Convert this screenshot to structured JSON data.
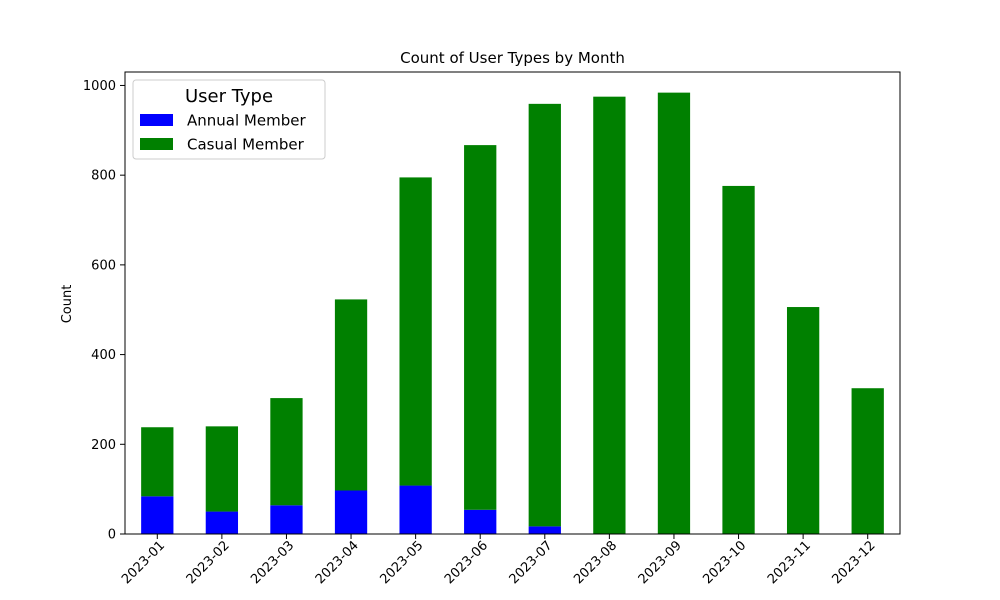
{
  "chart_data": {
    "type": "bar",
    "stacked": true,
    "title": "Count of User Types by Month",
    "xlabel": "",
    "ylabel": "Count",
    "ylim": [
      0,
      1030
    ],
    "yticks": [
      0,
      200,
      400,
      600,
      800,
      1000
    ],
    "categories": [
      "2023-01",
      "2023-02",
      "2023-03",
      "2023-04",
      "2023-05",
      "2023-06",
      "2023-07",
      "2023-08",
      "2023-09",
      "2023-10",
      "2023-11",
      "2023-12"
    ],
    "series": [
      {
        "name": "Annual Member",
        "color": "#0000ff",
        "values": [
          84,
          50,
          64,
          97,
          108,
          54,
          17,
          0,
          0,
          0,
          0,
          0
        ]
      },
      {
        "name": "Casual Member",
        "color": "#008000",
        "values": [
          154,
          190,
          239,
          426,
          687,
          813,
          942,
          975,
          984,
          776,
          506,
          325
        ]
      }
    ],
    "legend": {
      "title": "User Type",
      "position": "top-left"
    },
    "grid": false
  }
}
